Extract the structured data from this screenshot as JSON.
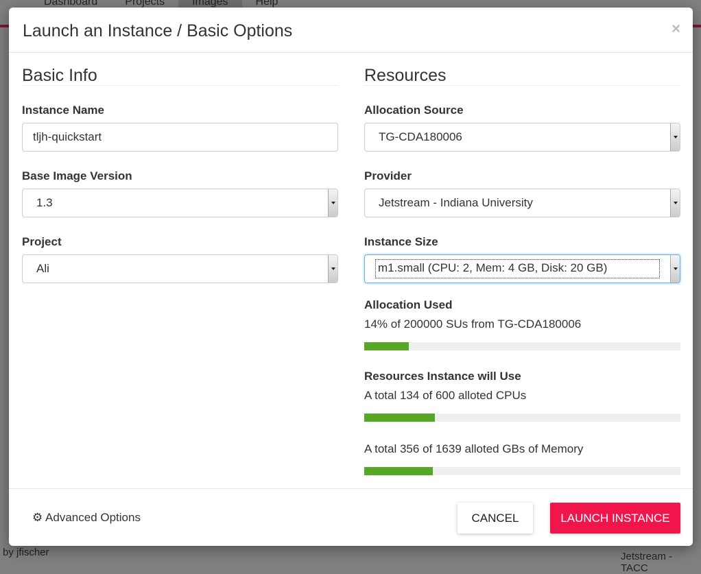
{
  "background": {
    "nav": [
      "Dashboard",
      "Projects",
      "Images",
      "Help"
    ],
    "author": "by jfischer",
    "provider": "Jetstream - TACC"
  },
  "modal": {
    "title": "Launch an Instance / Basic Options",
    "close": "×"
  },
  "basic_info": {
    "heading": "Basic Info",
    "instance_name": {
      "label": "Instance Name",
      "value": "tljh-quickstart"
    },
    "base_image_version": {
      "label": "Base Image Version",
      "value": "1.3"
    },
    "project": {
      "label": "Project",
      "value": "Ali"
    }
  },
  "resources": {
    "heading": "Resources",
    "allocation_source": {
      "label": "Allocation Source",
      "value": "TG-CDA180006"
    },
    "provider": {
      "label": "Provider",
      "value": "Jetstream - Indiana University"
    },
    "instance_size": {
      "label": "Instance Size",
      "value": "m1.small (CPU: 2, Mem: 4 GB, Disk: 20 GB)"
    },
    "allocation_used": {
      "label": "Allocation Used",
      "text": "14% of 200000 SUs from TG-CDA180006",
      "percent": 14
    },
    "instance_use": {
      "label": "Resources Instance will Use",
      "cpu": {
        "text": "A total 134 of 600 alloted CPUs",
        "percent": 22.3
      },
      "memory": {
        "text": "A total 356 of 1639 alloted GBs of Memory",
        "percent": 21.7
      }
    }
  },
  "footer": {
    "advanced": "Advanced Options",
    "cancel": "CANCEL",
    "launch": "LAUNCH INSTANCE"
  },
  "colors": {
    "accent": "#f0164c",
    "progress": "#56a824"
  }
}
